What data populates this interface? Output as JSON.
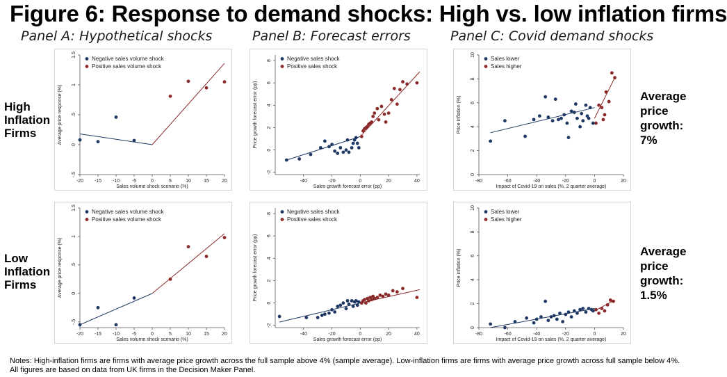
{
  "title": "Figure 6: Response to demand shocks: High vs. low inflation firms",
  "panel_titles": [
    "Panel A: Hypothetical shocks",
    "Panel B: Forecast errors",
    "Panel C: Covid demand shocks"
  ],
  "row_labels": {
    "high": [
      "High",
      "Inflation",
      "Firms"
    ],
    "low": [
      "Low",
      "Inflation",
      "Firms"
    ]
  },
  "average_growth": {
    "high": [
      "Average",
      "price",
      "growth:",
      "7%"
    ],
    "low": [
      "Average",
      "price",
      "growth:",
      "1.5%"
    ]
  },
  "notes": "Notes: High-inflation firms are firms with average price growth across the full sample above 4% (sample average). Low-inflation firms are firms with average price growth across full sample below 4%. All figures are based on data from UK firms in the Decision Maker Panel.",
  "colors": {
    "negative": "#1f3864",
    "positive": "#8b2a2a"
  },
  "chart_data": [
    {
      "id": "A-high",
      "type": "scatter",
      "xlabel": "Sales volume shock scenario (%)",
      "ylabel": "Average price response (%)",
      "xlim": [
        -20,
        20
      ],
      "ylim": [
        -0.5,
        1.5
      ],
      "xticks": [
        -20,
        -15,
        -10,
        -5,
        0,
        5,
        10,
        15,
        20
      ],
      "yticks": [
        -0.5,
        0,
        0.5,
        1,
        1.5
      ],
      "ytick_labels": [
        "-.5",
        "0",
        ".5",
        "1",
        "1.5"
      ],
      "legend": [
        "Negative sales volume shock",
        "Positive sales volume shock"
      ],
      "series": [
        {
          "name": "Negative sales volume shock",
          "color": "#1f3864",
          "x": [
            -20,
            -15,
            -10,
            -5
          ],
          "y": [
            0.08,
            0.05,
            0.46,
            0.07
          ],
          "fit": [
            [
              -20,
              0.18
            ],
            [
              0,
              0.0
            ]
          ]
        },
        {
          "name": "Positive sales volume shock",
          "color": "#8b2a2a",
          "x": [
            5,
            10,
            15,
            20
          ],
          "y": [
            0.81,
            1.06,
            0.95,
            1.05
          ],
          "fit": [
            [
              0,
              0.0
            ],
            [
              20,
              1.36
            ]
          ]
        }
      ]
    },
    {
      "id": "B-high",
      "type": "scatter",
      "xlabel": "Sales growth forecast error (pp)",
      "ylabel": "Price growth forecast error (pp)",
      "xlim": [
        -60,
        42
      ],
      "ylim": [
        -2.2,
        8.5
      ],
      "xticks": [
        -40,
        -20,
        0,
        20,
        40
      ],
      "yticks": [
        -2,
        0,
        2,
        4,
        6,
        8
      ],
      "ytick_labels": [
        "-2",
        "0",
        "2",
        "4",
        "6",
        "8"
      ],
      "legend": [
        "Negative sales shock",
        "Positive sales shock"
      ],
      "series": [
        {
          "name": "Negative sales shock",
          "color": "#1f3864",
          "x": [
            -52,
            -43,
            -35,
            -28,
            -25,
            -22,
            -20,
            -18,
            -16,
            -14,
            -12,
            -10,
            -9,
            -8,
            -6,
            -5,
            -4,
            -3,
            -2,
            -1
          ],
          "y": [
            -0.9,
            -0.8,
            -0.4,
            0.2,
            0.8,
            0.3,
            0.5,
            -0.1,
            -0.3,
            0.2,
            -0.2,
            0.0,
            0.9,
            -0.2,
            0.2,
            0.6,
            0.9,
            1.1,
            0.6,
            0.2
          ],
          "fit": [
            [
              -52,
              -0.9
            ],
            [
              0,
              1.2
            ]
          ]
        },
        {
          "name": "Positive sales shock",
          "color": "#8b2a2a",
          "x": [
            1,
            2,
            3,
            4,
            5,
            6,
            7,
            8,
            9,
            10,
            12,
            13,
            15,
            17,
            18,
            20,
            22,
            24,
            26,
            28,
            30,
            33,
            40
          ],
          "y": [
            1.2,
            1.7,
            1.9,
            2.0,
            2.1,
            2.3,
            2.4,
            2.5,
            3.0,
            3.3,
            3.7,
            2.7,
            3.9,
            3.2,
            2.5,
            3.3,
            4.5,
            5.5,
            4.1,
            5.4,
            6.1,
            5.9,
            6.0
          ],
          "fit": [
            [
              0,
              1.2
            ],
            [
              42,
              7.0
            ]
          ]
        }
      ]
    },
    {
      "id": "C-high",
      "type": "scatter",
      "xlabel": "Impact of Covid-19 on sales (%, 2 quarter average)",
      "ylabel": "Price inflation (%)",
      "xlim": [
        -80,
        20
      ],
      "ylim": [
        0,
        10
      ],
      "xticks": [
        -80,
        -60,
        -40,
        -20,
        0,
        20
      ],
      "yticks": [
        0,
        2,
        4,
        6,
        8,
        10
      ],
      "ytick_labels": [
        "0",
        "2",
        "4",
        "6",
        "8",
        "10"
      ],
      "legend": [
        "Sales lower",
        "Sales higher"
      ],
      "series": [
        {
          "name": "Sales lower",
          "color": "#1f3864",
          "x": [
            -72,
            -62,
            -48,
            -42,
            -38,
            -34,
            -32,
            -29,
            -27,
            -25,
            -23,
            -21,
            -19,
            -18,
            -16,
            -14,
            -13,
            -12,
            -10,
            -9,
            -8,
            -6,
            -5,
            -4,
            -3,
            -1
          ],
          "y": [
            2.8,
            4.5,
            3.2,
            4.6,
            4.9,
            6.5,
            4.8,
            4.5,
            6.3,
            4.6,
            4.7,
            5.0,
            4.3,
            3.1,
            5.3,
            5.2,
            5.9,
            4.7,
            4.0,
            5.1,
            4.5,
            5.8,
            4.9,
            4.7,
            5.6,
            4.3
          ],
          "fit": [
            [
              -72,
              3.5
            ],
            [
              0,
              5.6
            ]
          ]
        },
        {
          "name": "Sales higher",
          "color": "#8b2a2a",
          "x": [
            1,
            3,
            5,
            6,
            7,
            8,
            10,
            12,
            14
          ],
          "y": [
            4.3,
            5.8,
            5.6,
            4.6,
            5.0,
            6.9,
            6.1,
            8.5,
            8.1
          ],
          "fit": [
            [
              0,
              4.7
            ],
            [
              14,
              8.1
            ]
          ]
        }
      ]
    },
    {
      "id": "A-low",
      "type": "scatter",
      "xlabel": "Sales volume shock scenario (%)",
      "ylabel": "Average price response (%)",
      "xlim": [
        -20,
        20
      ],
      "ylim": [
        -0.6,
        1.5
      ],
      "xticks": [
        -20,
        -15,
        -10,
        -5,
        0,
        5,
        10,
        15,
        20
      ],
      "yticks": [
        -0.5,
        0,
        0.5,
        1,
        1.5
      ],
      "ytick_labels": [
        "-.5",
        "0",
        ".5",
        "1",
        "1.5"
      ],
      "legend": [
        "Negative sales volume shock",
        "Positive sales volume shock"
      ],
      "series": [
        {
          "name": "Negative sales volume shock",
          "color": "#1f3864",
          "x": [
            -20,
            -15,
            -10,
            -5
          ],
          "y": [
            -0.55,
            -0.25,
            -0.55,
            -0.08
          ],
          "fit": [
            [
              -20,
              -0.55
            ],
            [
              0,
              0.0
            ]
          ]
        },
        {
          "name": "Positive sales volume shock",
          "color": "#8b2a2a",
          "x": [
            5,
            10,
            15,
            20
          ],
          "y": [
            0.25,
            0.82,
            0.65,
            0.98
          ],
          "fit": [
            [
              0,
              0.0
            ],
            [
              20,
              1.05
            ]
          ]
        }
      ]
    },
    {
      "id": "B-low",
      "type": "scatter",
      "xlabel": "Sales growth forecast error (pp)",
      "ylabel": "Price growth forecast error (pp)",
      "xlim": [
        -60,
        42
      ],
      "ylim": [
        -2.2,
        8.5
      ],
      "xticks": [
        -40,
        -20,
        0,
        20,
        40
      ],
      "yticks": [
        -2,
        0,
        2,
        4,
        6,
        8
      ],
      "ytick_labels": [
        "-2",
        "0",
        "2",
        "4",
        "6",
        "8"
      ],
      "legend": [
        "Negative sales shock",
        "Positive sales shock"
      ],
      "series": [
        {
          "name": "Negative sales shock",
          "color": "#1f3864",
          "x": [
            -57,
            -38,
            -30,
            -27,
            -25,
            -22,
            -20,
            -18,
            -16,
            -14,
            -12,
            -10,
            -9,
            -8,
            -6,
            -5,
            -4,
            -3,
            -2,
            -1
          ],
          "y": [
            -1.2,
            -1.3,
            -1.3,
            -1.1,
            -1.0,
            -0.9,
            -0.6,
            -0.8,
            -0.3,
            -0.2,
            0.0,
            -0.5,
            0.2,
            -0.1,
            0.2,
            -0.3,
            0.1,
            0.2,
            -0.2,
            0.1
          ],
          "fit": [
            [
              -57,
              -1.7
            ],
            [
              0,
              0.0
            ]
          ]
        },
        {
          "name": "Positive sales shock",
          "color": "#8b2a2a",
          "x": [
            1,
            2,
            3,
            4,
            5,
            6,
            7,
            8,
            9,
            10,
            12,
            14,
            16,
            18,
            20,
            23,
            26,
            30,
            40
          ],
          "y": [
            0.0,
            0.2,
            0.3,
            0.0,
            0.4,
            0.2,
            0.5,
            0.3,
            0.6,
            0.4,
            0.5,
            0.7,
            0.6,
            0.8,
            0.7,
            1.1,
            1.0,
            1.3,
            0.5
          ],
          "fit": [
            [
              0,
              0.0
            ],
            [
              42,
              1.2
            ]
          ]
        }
      ]
    },
    {
      "id": "C-low",
      "type": "scatter",
      "xlabel": "Impact of Covid-19 on sales (%, 2 quarter average)",
      "ylabel": "Price inflation (%)",
      "xlim": [
        -80,
        20
      ],
      "ylim": [
        0,
        10
      ],
      "xticks": [
        -80,
        -60,
        -40,
        -20,
        0,
        20
      ],
      "yticks": [
        0,
        2,
        4,
        6,
        8,
        10
      ],
      "ytick_labels": [
        "0",
        "2",
        "4",
        "6",
        "8",
        "10"
      ],
      "legend": [
        "Sales lower",
        "Sales higher"
      ],
      "series": [
        {
          "name": "Sales lower",
          "color": "#1f3864",
          "x": [
            -72,
            -62,
            -55,
            -47,
            -42,
            -40,
            -37,
            -34,
            -32,
            -30,
            -28,
            -26,
            -24,
            -22,
            -20,
            -18,
            -16,
            -14,
            -12,
            -10,
            -8,
            -6,
            -4,
            -2,
            -1
          ],
          "y": [
            0.3,
            0.0,
            0.5,
            0.8,
            0.4,
            0.7,
            0.9,
            2.2,
            0.6,
            0.9,
            1.0,
            0.7,
            1.2,
            0.5,
            1.1,
            1.3,
            0.9,
            1.4,
            1.2,
            1.5,
            1.6,
            1.3,
            1.6,
            1.5,
            1.4
          ],
          "fit": [
            [
              -72,
              0.0
            ],
            [
              0,
              1.6
            ]
          ]
        },
        {
          "name": "Sales higher",
          "color": "#8b2a2a",
          "x": [
            1,
            3,
            5,
            7,
            9,
            11,
            13
          ],
          "y": [
            1.5,
            1.2,
            1.6,
            1.4,
            1.9,
            2.3,
            2.2
          ],
          "fit": [
            [
              0,
              1.4
            ],
            [
              14,
              2.3
            ]
          ]
        }
      ]
    }
  ]
}
